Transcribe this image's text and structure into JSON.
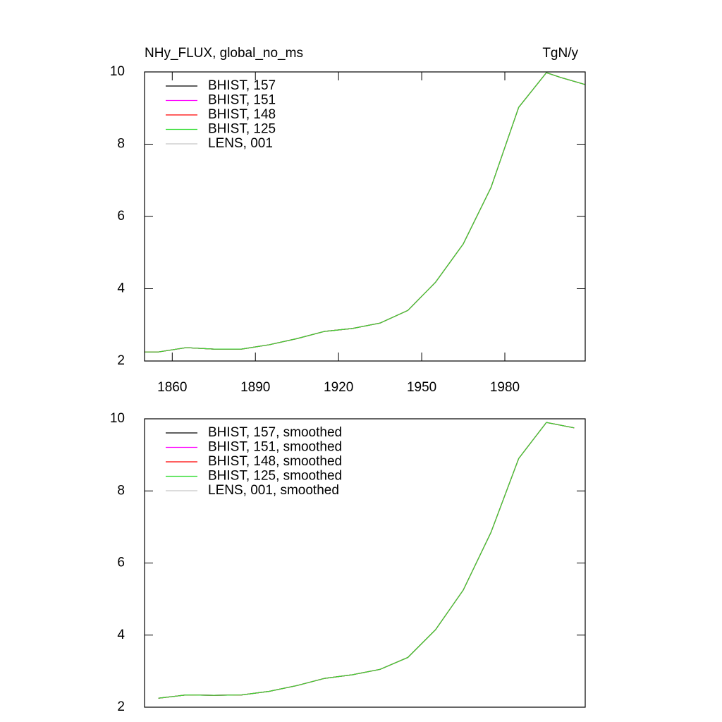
{
  "chart_data": [
    {
      "type": "line",
      "title": "NHy_FLUX, global_no_ms",
      "units": "TgN/y",
      "x": [
        1850,
        1855,
        1865,
        1875,
        1885,
        1895,
        1905,
        1915,
        1925,
        1935,
        1945,
        1955,
        1965,
        1975,
        1985,
        1995,
        2000,
        2009
      ],
      "series": [
        {
          "name": "BHIST, 157",
          "color": "#000000",
          "values": [
            2.25,
            2.25,
            2.37,
            2.33,
            2.33,
            2.45,
            2.62,
            2.82,
            2.9,
            3.05,
            3.4,
            4.18,
            5.24,
            6.8,
            9.02,
            9.98,
            9.85,
            9.65
          ]
        },
        {
          "name": "BHIST, 151",
          "color": "#ff00ff",
          "values": [
            2.25,
            2.25,
            2.37,
            2.33,
            2.33,
            2.45,
            2.62,
            2.82,
            2.9,
            3.05,
            3.4,
            4.18,
            5.24,
            6.8,
            9.02,
            9.98,
            9.85,
            9.65
          ]
        },
        {
          "name": "BHIST, 148",
          "color": "#ff0000",
          "values": [
            2.25,
            2.25,
            2.37,
            2.33,
            2.33,
            2.45,
            2.62,
            2.82,
            2.9,
            3.05,
            3.4,
            4.18,
            5.24,
            6.8,
            9.02,
            9.98,
            9.85,
            9.65
          ]
        },
        {
          "name": "BHIST, 125",
          "color": "#33dd33",
          "values": [
            2.25,
            2.25,
            2.37,
            2.33,
            2.33,
            2.45,
            2.62,
            2.82,
            2.9,
            3.05,
            3.4,
            4.18,
            5.24,
            6.8,
            9.02,
            9.98,
            9.85,
            9.65
          ]
        },
        {
          "name": "LENS, 001",
          "color": "#c8c8c8",
          "values": [
            2.25,
            2.25,
            2.37,
            2.33,
            2.33,
            2.45,
            2.62,
            2.82,
            2.9,
            3.05,
            3.4,
            4.18,
            5.24,
            6.8,
            9.02,
            9.98,
            9.85,
            9.65
          ]
        }
      ],
      "xlim": [
        1850,
        2009
      ],
      "xticks": [
        1860,
        1890,
        1920,
        1950,
        1980
      ],
      "ylim": [
        2,
        10
      ],
      "yticks": [
        2,
        4,
        6,
        8,
        10
      ]
    },
    {
      "type": "line",
      "x": [
        1855,
        1865,
        1875,
        1885,
        1895,
        1905,
        1915,
        1925,
        1935,
        1945,
        1955,
        1965,
        1975,
        1985,
        1995,
        2005
      ],
      "series": [
        {
          "name": "BHIST, 157, smoothed",
          "color": "#000000",
          "values": [
            2.25,
            2.34,
            2.33,
            2.34,
            2.44,
            2.6,
            2.8,
            2.9,
            3.05,
            3.38,
            4.15,
            5.25,
            6.85,
            8.9,
            9.9,
            9.75
          ]
        },
        {
          "name": "BHIST, 151, smoothed",
          "color": "#ff00ff",
          "values": [
            2.25,
            2.34,
            2.33,
            2.34,
            2.44,
            2.6,
            2.8,
            2.9,
            3.05,
            3.38,
            4.15,
            5.25,
            6.85,
            8.9,
            9.9,
            9.75
          ]
        },
        {
          "name": "BHIST, 148, smoothed",
          "color": "#ff0000",
          "values": [
            2.25,
            2.34,
            2.33,
            2.34,
            2.44,
            2.6,
            2.8,
            2.9,
            3.05,
            3.38,
            4.15,
            5.25,
            6.85,
            8.9,
            9.9,
            9.75
          ]
        },
        {
          "name": "BHIST, 125, smoothed",
          "color": "#33dd33",
          "values": [
            2.25,
            2.34,
            2.33,
            2.34,
            2.44,
            2.6,
            2.8,
            2.9,
            3.05,
            3.38,
            4.15,
            5.25,
            6.85,
            8.9,
            9.9,
            9.75
          ]
        },
        {
          "name": "LENS, 001, smoothed",
          "color": "#c8c8c8",
          "values": [
            2.25,
            2.34,
            2.33,
            2.34,
            2.44,
            2.6,
            2.8,
            2.9,
            3.05,
            3.38,
            4.15,
            5.25,
            6.85,
            8.9,
            9.9,
            9.75
          ]
        }
      ],
      "xlim": [
        1850,
        2009
      ],
      "ylim": [
        2,
        10
      ],
      "yticks": [
        2,
        4,
        6,
        8,
        10
      ]
    }
  ]
}
